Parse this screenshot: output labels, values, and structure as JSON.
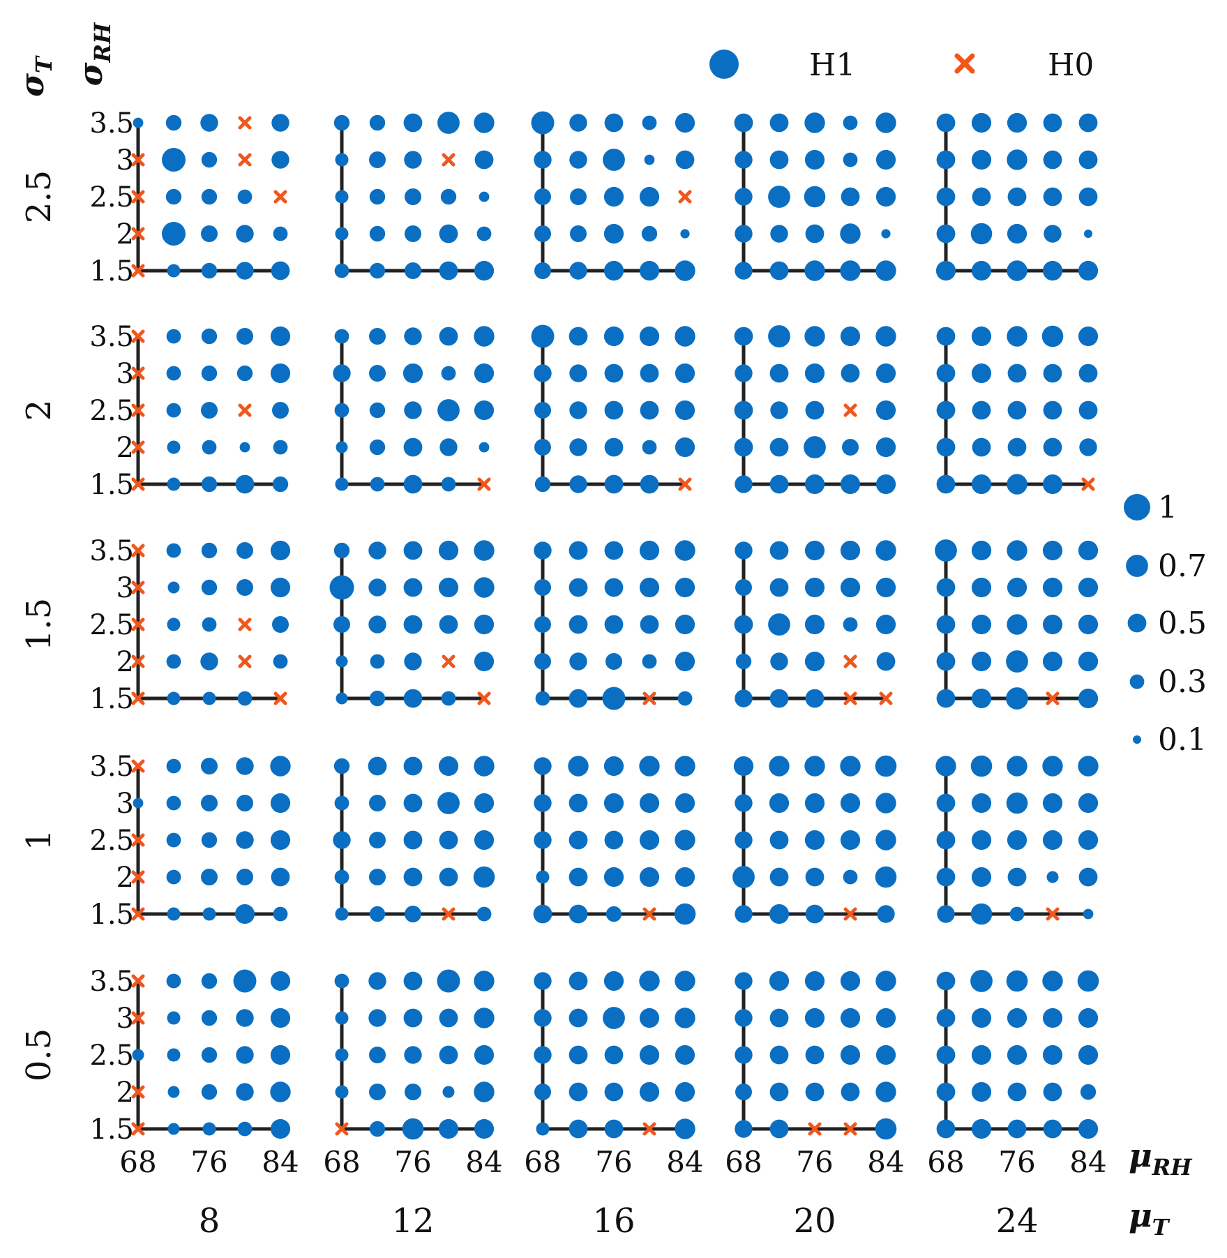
{
  "chart_data": {
    "type": "scatter",
    "description_text": "",
    "legend": {
      "series": [
        {
          "key": "H1",
          "label": "H1",
          "color": "#0a6fc2",
          "marker": "circle"
        },
        {
          "key": "H0",
          "label": "H0",
          "color": "#f0571d",
          "marker": "x"
        }
      ],
      "size_scale": {
        "values": [
          1,
          0.7,
          0.5,
          0.3,
          0.1
        ],
        "labels": [
          "1",
          "0.7",
          "0.5",
          "0.3",
          "0.1"
        ]
      }
    },
    "axes": {
      "sigma_T_label": "σ",
      "sigma_T_sub": "T",
      "sigma_RH_label": "σ",
      "sigma_RH_sub": "RH",
      "mu_RH_label": "μ",
      "mu_RH_sub": "RH",
      "mu_T_label": "μ",
      "mu_T_sub": "T"
    },
    "mu_T": [
      "8",
      "12",
      "16",
      "20",
      "24"
    ],
    "sigma_T": [
      "2.5",
      "2",
      "1.5",
      "1",
      "0.5"
    ],
    "mu_RH_values": [
      68,
      72,
      76,
      80,
      84
    ],
    "mu_RH_ticks": [
      "68",
      "76",
      "84"
    ],
    "sigma_RH_values": [
      1.5,
      2,
      2.5,
      3,
      3.5
    ],
    "sigma_RH_ticks": [
      "1.5",
      "2",
      "2.5",
      "3",
      "3.5"
    ],
    "panels_note": "Each panel: rows indexed by sigma_RH from 3.5 (top) to 1.5 (bottom); columns indexed by mu_RH 68..84. Value = marker size (0.1..1); 'x' = H0 (hypothesis not rejected).",
    "panels": [
      [
        {
          "mu_T": 8,
          "sigma_T": 2.5,
          "grid": [
            [
              0.15,
              0.35,
              0.45,
              "x",
              0.45
            ],
            [
              "x",
              0.8,
              0.35,
              "x",
              0.45
            ],
            [
              "x",
              0.35,
              0.35,
              0.3,
              "x"
            ],
            [
              "x",
              0.8,
              0.4,
              0.45,
              0.3
            ],
            [
              "x",
              0.25,
              0.35,
              0.45,
              0.5
            ]
          ]
        },
        {
          "mu_T": 12,
          "sigma_T": 2.5,
          "grid": [
            [
              0.35,
              0.35,
              0.5,
              0.7,
              0.6
            ],
            [
              0.25,
              0.4,
              0.45,
              "x",
              0.5
            ],
            [
              0.25,
              0.35,
              0.4,
              0.35,
              0.15
            ],
            [
              0.25,
              0.35,
              0.4,
              0.5,
              0.3
            ],
            [
              0.3,
              0.35,
              0.4,
              0.5,
              0.55
            ]
          ]
        },
        {
          "mu_T": 16,
          "sigma_T": 2.5,
          "grid": [
            [
              0.75,
              0.45,
              0.5,
              0.3,
              0.55
            ],
            [
              0.45,
              0.45,
              0.7,
              0.15,
              0.5
            ],
            [
              0.4,
              0.4,
              0.55,
              0.55,
              "x"
            ],
            [
              0.4,
              0.4,
              0.55,
              0.35,
              0.12
            ],
            [
              0.4,
              0.45,
              0.55,
              0.55,
              0.6
            ]
          ]
        },
        {
          "mu_T": 20,
          "sigma_T": 2.5,
          "grid": [
            [
              0.5,
              0.5,
              0.6,
              0.3,
              0.6
            ],
            [
              0.45,
              0.5,
              0.55,
              0.3,
              0.55
            ],
            [
              0.45,
              0.7,
              0.65,
              0.5,
              0.55
            ],
            [
              0.45,
              0.45,
              0.5,
              0.6,
              0.12
            ],
            [
              0.45,
              0.5,
              0.6,
              0.6,
              0.6
            ]
          ]
        },
        {
          "mu_T": 24,
          "sigma_T": 2.5,
          "grid": [
            [
              0.5,
              0.55,
              0.55,
              0.5,
              0.5
            ],
            [
              0.5,
              0.55,
              0.6,
              0.5,
              0.5
            ],
            [
              0.5,
              0.5,
              0.5,
              0.5,
              0.5
            ],
            [
              0.5,
              0.65,
              0.55,
              0.45,
              0.1
            ],
            [
              0.55,
              0.55,
              0.6,
              0.55,
              0.55
            ]
          ]
        }
      ],
      [
        {
          "mu_T": 8,
          "sigma_T": 2,
          "grid": [
            [
              "x",
              0.3,
              0.35,
              0.4,
              0.55
            ],
            [
              "x",
              0.3,
              0.35,
              0.35,
              0.55
            ],
            [
              "x",
              0.3,
              0.4,
              "x",
              0.4
            ],
            [
              "x",
              0.25,
              0.3,
              0.15,
              0.3
            ],
            [
              "x",
              0.25,
              0.35,
              0.5,
              0.35
            ]
          ]
        },
        {
          "mu_T": 12,
          "sigma_T": 2,
          "grid": [
            [
              0.3,
              0.4,
              0.45,
              0.5,
              0.6
            ],
            [
              0.45,
              0.4,
              0.55,
              0.3,
              0.55
            ],
            [
              0.3,
              0.35,
              0.45,
              0.7,
              0.55
            ],
            [
              0.2,
              0.35,
              0.5,
              0.45,
              0.15
            ],
            [
              0.25,
              0.3,
              0.5,
              0.3,
              "x"
            ]
          ]
        },
        {
          "mu_T": 16,
          "sigma_T": 2,
          "grid": [
            [
              0.75,
              0.5,
              0.55,
              0.55,
              0.6
            ],
            [
              0.45,
              0.45,
              0.5,
              0.5,
              0.55
            ],
            [
              0.4,
              0.45,
              0.5,
              0.5,
              0.55
            ],
            [
              0.4,
              0.45,
              0.5,
              0.3,
              0.55
            ],
            [
              0.35,
              0.45,
              0.5,
              0.5,
              "x"
            ]
          ]
        },
        {
          "mu_T": 20,
          "sigma_T": 2,
          "grid": [
            [
              0.5,
              0.7,
              0.6,
              0.55,
              0.6
            ],
            [
              0.45,
              0.5,
              0.55,
              0.5,
              0.55
            ],
            [
              0.5,
              0.45,
              0.5,
              "x",
              0.55
            ],
            [
              0.5,
              0.5,
              0.7,
              0.4,
              0.55
            ],
            [
              0.45,
              0.5,
              0.55,
              0.55,
              0.55
            ]
          ]
        },
        {
          "mu_T": 24,
          "sigma_T": 2,
          "grid": [
            [
              0.5,
              0.55,
              0.6,
              0.65,
              0.55
            ],
            [
              0.5,
              0.55,
              0.5,
              0.5,
              0.5
            ],
            [
              0.5,
              0.5,
              0.5,
              0.5,
              0.5
            ],
            [
              0.5,
              0.5,
              0.5,
              0.5,
              0.45
            ],
            [
              0.5,
              0.55,
              0.6,
              0.55,
              "x"
            ]
          ]
        }
      ],
      [
        {
          "mu_T": 8,
          "sigma_T": 1.5,
          "grid": [
            [
              "x",
              0.3,
              0.35,
              0.4,
              0.55
            ],
            [
              "x",
              0.2,
              0.35,
              0.4,
              0.55
            ],
            [
              "x",
              0.25,
              0.3,
              "x",
              0.4
            ],
            [
              "x",
              0.3,
              0.45,
              "x",
              0.3
            ],
            [
              "x",
              0.25,
              0.25,
              0.3,
              "x"
            ]
          ]
        },
        {
          "mu_T": 12,
          "sigma_T": 1.5,
          "grid": [
            [
              0.35,
              0.45,
              0.5,
              0.55,
              0.6
            ],
            [
              0.85,
              0.45,
              0.5,
              0.55,
              0.6
            ],
            [
              0.4,
              0.45,
              0.5,
              0.5,
              0.55
            ],
            [
              0.2,
              0.3,
              0.45,
              "x",
              0.55
            ],
            [
              0.2,
              0.35,
              0.5,
              0.3,
              "x"
            ]
          ]
        },
        {
          "mu_T": 16,
          "sigma_T": 1.5,
          "grid": [
            [
              0.45,
              0.5,
              0.5,
              0.55,
              0.6
            ],
            [
              0.4,
              0.5,
              0.5,
              0.55,
              0.55
            ],
            [
              0.4,
              0.5,
              0.5,
              0.5,
              0.55
            ],
            [
              0.4,
              0.45,
              0.4,
              0.3,
              0.55
            ],
            [
              0.3,
              0.5,
              0.75,
              "x",
              0.3
            ]
          ]
        },
        {
          "mu_T": 20,
          "sigma_T": 1.5,
          "grid": [
            [
              0.45,
              0.5,
              0.55,
              0.55,
              0.6
            ],
            [
              0.4,
              0.5,
              0.55,
              0.55,
              0.55
            ],
            [
              0.5,
              0.7,
              0.55,
              0.3,
              0.55
            ],
            [
              0.35,
              0.45,
              0.55,
              "x",
              0.5
            ],
            [
              0.45,
              0.5,
              0.5,
              "x",
              "x"
            ]
          ]
        },
        {
          "mu_T": 24,
          "sigma_T": 1.5,
          "grid": [
            [
              0.7,
              0.55,
              0.6,
              0.55,
              0.55
            ],
            [
              0.5,
              0.55,
              0.55,
              0.55,
              0.55
            ],
            [
              0.5,
              0.55,
              0.6,
              0.55,
              0.55
            ],
            [
              0.5,
              0.55,
              0.7,
              0.55,
              0.55
            ],
            [
              0.5,
              0.55,
              0.7,
              "x",
              0.55
            ]
          ]
        }
      ],
      [
        {
          "mu_T": 8,
          "sigma_T": 1,
          "grid": [
            [
              "x",
              0.3,
              0.4,
              0.45,
              0.6
            ],
            [
              0.15,
              0.3,
              0.4,
              0.4,
              0.55
            ],
            [
              "x",
              0.3,
              0.35,
              0.45,
              0.55
            ],
            [
              "x",
              0.3,
              0.4,
              0.4,
              0.5
            ],
            [
              "x",
              0.25,
              0.25,
              0.55,
              0.3
            ]
          ]
        },
        {
          "mu_T": 12,
          "sigma_T": 1,
          "grid": [
            [
              0.35,
              0.5,
              0.5,
              0.55,
              0.6
            ],
            [
              0.3,
              0.4,
              0.5,
              0.7,
              0.55
            ],
            [
              0.45,
              0.4,
              0.5,
              0.5,
              0.55
            ],
            [
              0.3,
              0.4,
              0.5,
              0.5,
              0.65
            ],
            [
              0.25,
              0.35,
              0.4,
              "x",
              0.3
            ]
          ]
        },
        {
          "mu_T": 16,
          "sigma_T": 1,
          "grid": [
            [
              0.45,
              0.6,
              0.55,
              0.6,
              0.6
            ],
            [
              0.45,
              0.5,
              0.55,
              0.55,
              0.55
            ],
            [
              0.45,
              0.5,
              0.5,
              0.55,
              0.6
            ],
            [
              0.25,
              0.5,
              0.55,
              0.55,
              0.55
            ],
            [
              0.5,
              0.5,
              0.35,
              "x",
              0.65
            ]
          ]
        },
        {
          "mu_T": 20,
          "sigma_T": 1,
          "grid": [
            [
              0.55,
              0.6,
              0.6,
              0.6,
              0.65
            ],
            [
              0.45,
              0.55,
              0.55,
              0.55,
              0.6
            ],
            [
              0.45,
              0.5,
              0.55,
              0.55,
              0.6
            ],
            [
              0.7,
              0.5,
              0.5,
              0.3,
              0.65
            ],
            [
              0.45,
              0.55,
              0.5,
              "x",
              0.45
            ]
          ]
        },
        {
          "mu_T": 24,
          "sigma_T": 1,
          "grid": [
            [
              0.6,
              0.65,
              0.6,
              0.6,
              0.6
            ],
            [
              0.5,
              0.55,
              0.65,
              0.55,
              0.55
            ],
            [
              0.5,
              0.55,
              0.55,
              0.55,
              0.55
            ],
            [
              0.5,
              0.55,
              0.5,
              0.2,
              0.5
            ],
            [
              0.45,
              0.65,
              0.3,
              "x",
              0.15
            ]
          ]
        }
      ],
      [
        {
          "mu_T": 8,
          "sigma_T": 0.5,
          "grid": [
            [
              "x",
              0.3,
              0.35,
              0.75,
              0.55
            ],
            [
              "x",
              0.25,
              0.35,
              0.45,
              0.55
            ],
            [
              0.2,
              0.25,
              0.35,
              0.45,
              0.55
            ],
            [
              "x",
              0.2,
              0.35,
              0.45,
              0.6
            ],
            [
              "x",
              0.2,
              0.25,
              0.3,
              0.55
            ]
          ]
        },
        {
          "mu_T": 12,
          "sigma_T": 0.5,
          "grid": [
            [
              0.3,
              0.45,
              0.5,
              0.75,
              0.6
            ],
            [
              0.25,
              0.45,
              0.5,
              0.5,
              0.6
            ],
            [
              0.25,
              0.4,
              0.45,
              0.5,
              0.55
            ],
            [
              0.25,
              0.4,
              0.4,
              0.2,
              0.6
            ],
            [
              "x",
              0.35,
              0.65,
              0.55,
              0.55
            ]
          ]
        },
        {
          "mu_T": 16,
          "sigma_T": 0.5,
          "grid": [
            [
              0.45,
              0.5,
              0.55,
              0.6,
              0.6
            ],
            [
              0.45,
              0.5,
              0.7,
              0.55,
              0.6
            ],
            [
              0.45,
              0.5,
              0.5,
              0.55,
              0.55
            ],
            [
              0.4,
              0.5,
              0.5,
              0.55,
              0.55
            ],
            [
              0.25,
              0.5,
              0.5,
              "x",
              0.6
            ]
          ]
        },
        {
          "mu_T": 20,
          "sigma_T": 0.5,
          "grid": [
            [
              0.45,
              0.55,
              0.55,
              0.55,
              0.6
            ],
            [
              0.45,
              0.5,
              0.55,
              0.55,
              0.55
            ],
            [
              0.45,
              0.5,
              0.5,
              0.55,
              0.55
            ],
            [
              0.4,
              0.5,
              0.5,
              0.5,
              0.6
            ],
            [
              0.45,
              0.5,
              "x",
              "x",
              0.65
            ]
          ]
        },
        {
          "mu_T": 24,
          "sigma_T": 0.5,
          "grid": [
            [
              0.5,
              0.7,
              0.65,
              0.6,
              0.65
            ],
            [
              0.5,
              0.55,
              0.55,
              0.55,
              0.55
            ],
            [
              0.5,
              0.55,
              0.55,
              0.55,
              0.55
            ],
            [
              0.5,
              0.55,
              0.5,
              0.5,
              0.35
            ],
            [
              0.5,
              0.55,
              0.5,
              0.5,
              0.55
            ]
          ]
        }
      ]
    ]
  }
}
